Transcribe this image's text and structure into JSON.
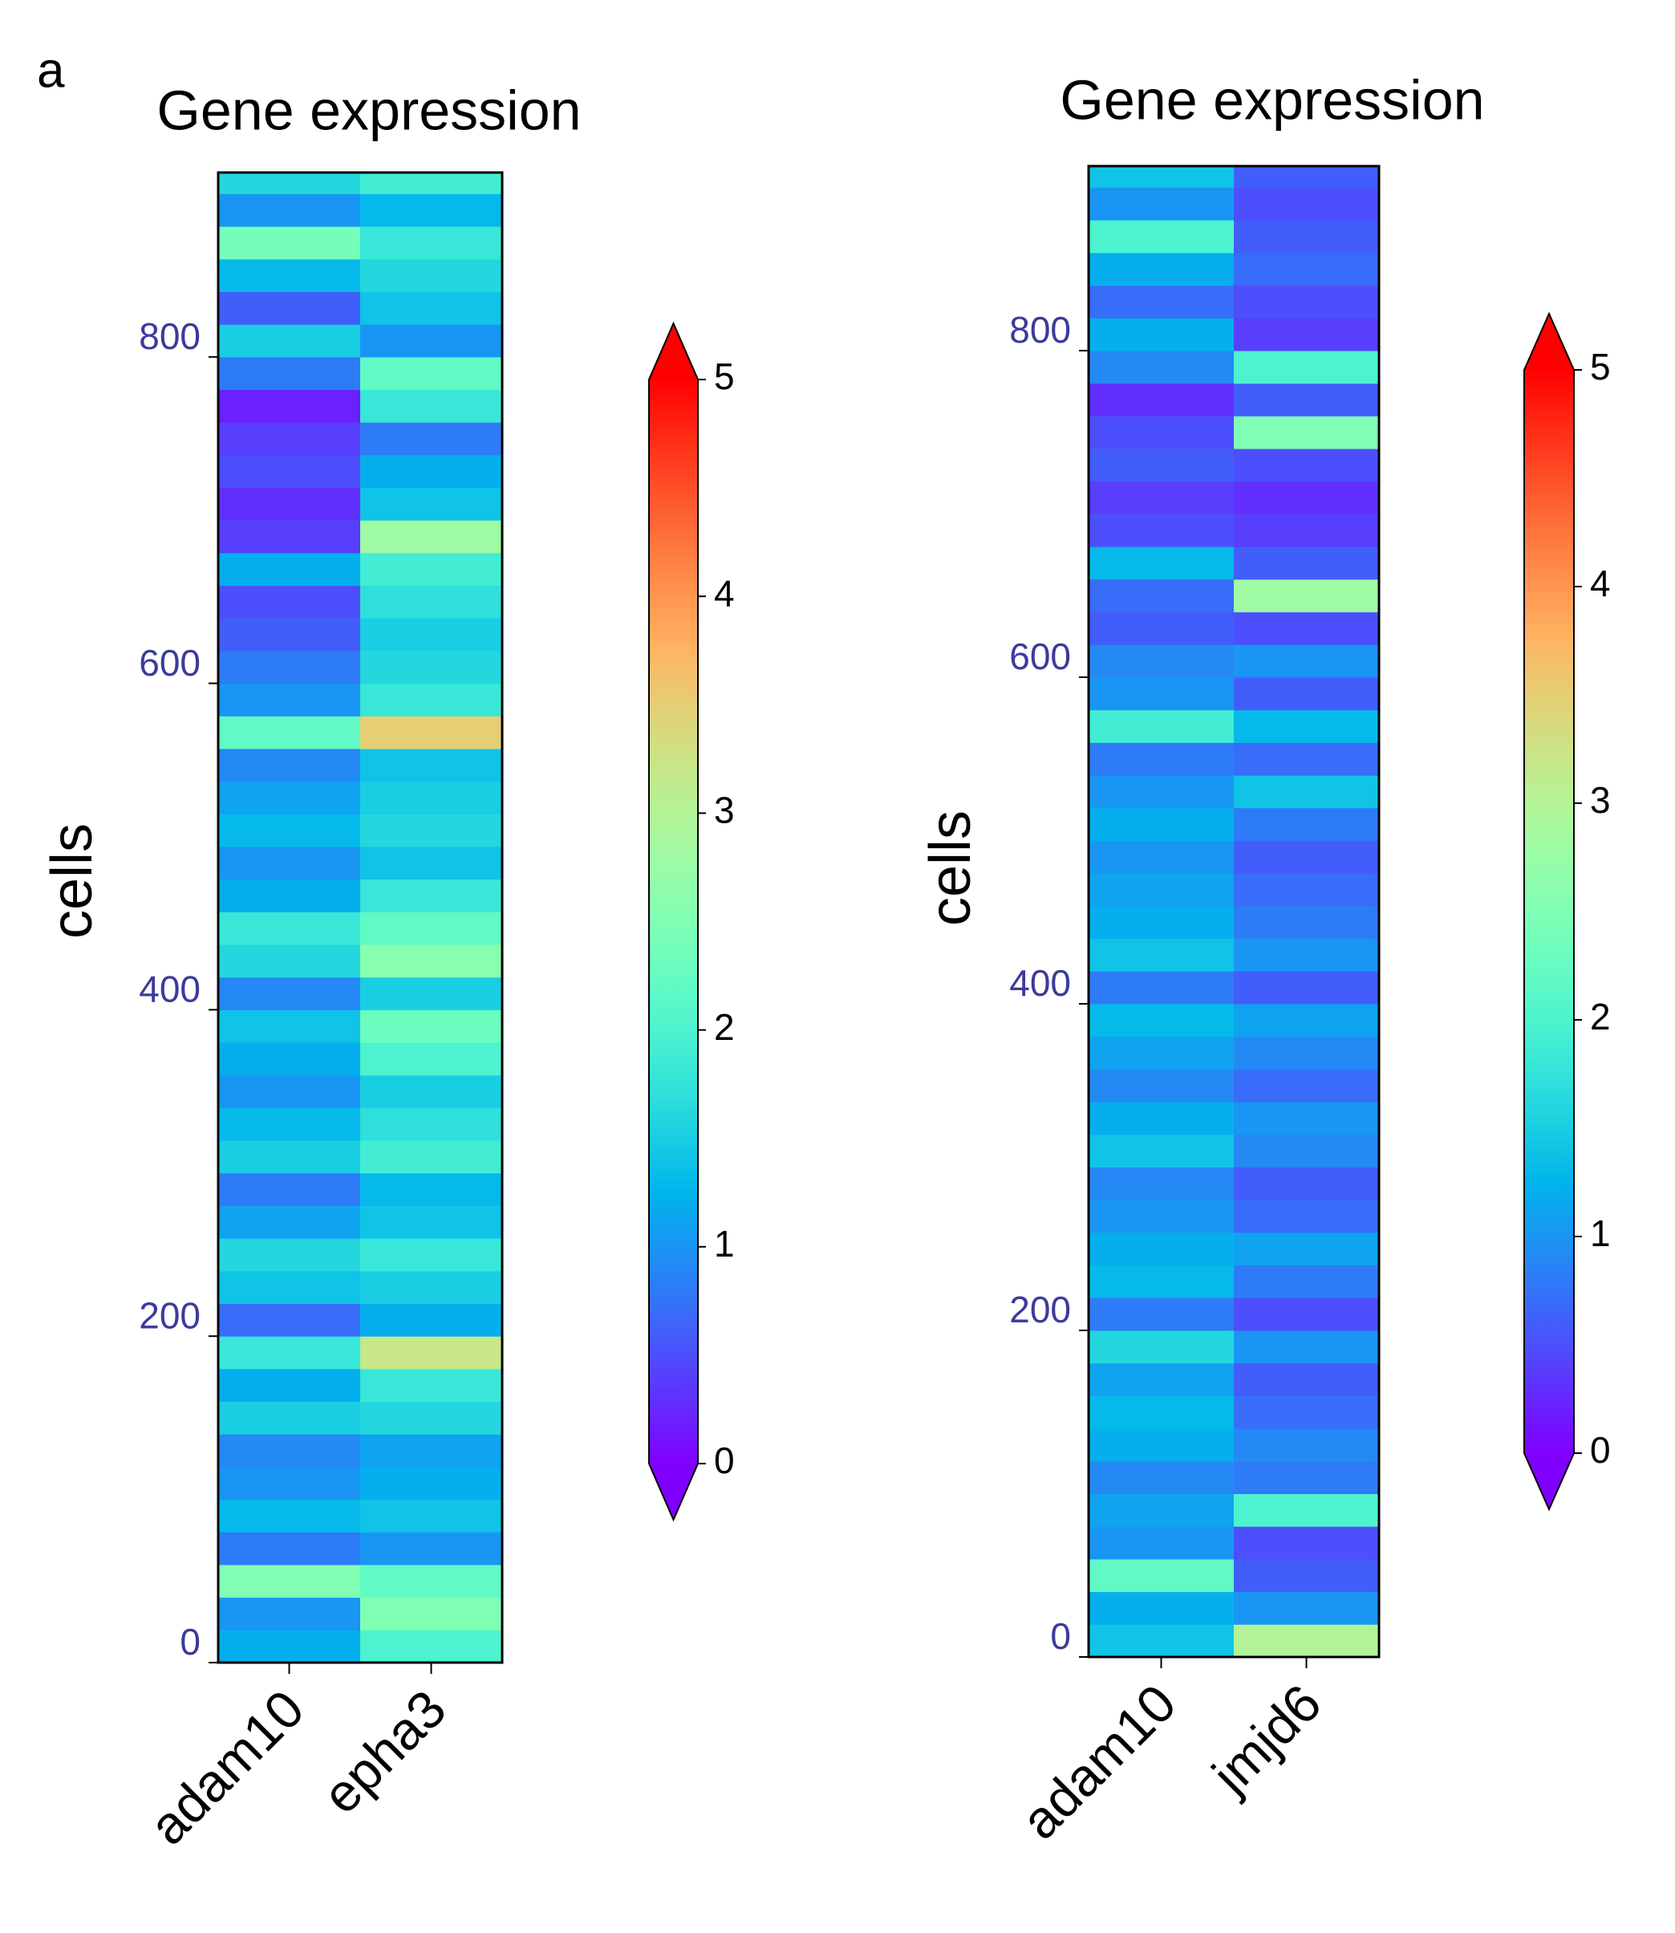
{
  "panel_label": "a",
  "chart_data": [
    {
      "type": "heatmap",
      "title": "Gene expression",
      "ylabel": "cells",
      "categories": [
        "adam10",
        "epha3"
      ],
      "ybins": [
        0,
        20,
        40,
        60,
        80,
        100,
        120,
        140,
        160,
        180,
        200,
        220,
        240,
        260,
        280,
        300,
        320,
        340,
        360,
        380,
        400,
        420,
        440,
        460,
        480,
        500,
        520,
        540,
        560,
        580,
        600,
        620,
        640,
        660,
        680,
        700,
        720,
        740,
        760,
        780,
        800,
        820,
        840,
        860,
        880,
        900,
        913
      ],
      "values": [
        [
          1.2,
          1.0,
          2.5,
          0.8,
          1.3,
          1.0,
          0.9,
          1.5,
          1.2,
          1.8,
          0.7,
          1.4,
          1.6,
          1.1,
          0.8,
          1.5,
          1.3,
          1.0,
          1.2,
          1.4,
          0.9,
          1.6,
          1.8,
          1.2,
          1.0,
          1.3,
          1.1,
          0.9,
          2.2,
          1.0,
          0.8,
          0.6,
          0.5,
          1.2,
          0.4,
          0.3,
          0.5,
          0.4,
          0.2,
          0.8,
          1.5,
          0.6,
          1.3,
          2.4,
          1.0,
          1.6
        ],
        [
          2.0,
          2.5,
          2.2,
          1.0,
          1.4,
          1.2,
          1.1,
          1.6,
          1.8,
          3.2,
          1.2,
          1.5,
          1.8,
          1.4,
          1.3,
          1.9,
          1.7,
          1.5,
          2.0,
          2.3,
          1.5,
          2.6,
          2.2,
          1.8,
          1.4,
          1.6,
          1.5,
          1.4,
          3.5,
          1.8,
          1.6,
          1.5,
          1.7,
          1.9,
          2.8,
          1.4,
          1.2,
          0.8,
          1.8,
          2.2,
          1.0,
          1.4,
          1.6,
          1.8,
          1.3,
          1.9
        ]
      ],
      "ylim": [
        0,
        913
      ],
      "yticks": [
        0,
        200,
        400,
        600,
        800
      ],
      "colorbar": {
        "colormap": "rainbow",
        "clim": [
          0,
          5
        ],
        "ticks": [
          0,
          1,
          2,
          3,
          4,
          5
        ],
        "extend": "both"
      }
    },
    {
      "type": "heatmap",
      "title": "Gene expression",
      "ylabel": "cells",
      "categories": [
        "adam10",
        "jmjd6"
      ],
      "ybins": [
        0,
        20,
        40,
        60,
        80,
        100,
        120,
        140,
        160,
        180,
        200,
        220,
        240,
        260,
        280,
        300,
        320,
        340,
        360,
        380,
        400,
        420,
        440,
        460,
        480,
        500,
        520,
        540,
        560,
        580,
        600,
        620,
        640,
        660,
        680,
        700,
        720,
        740,
        760,
        780,
        800,
        820,
        840,
        860,
        880,
        900,
        913
      ],
      "values": [
        [
          1.4,
          1.2,
          2.2,
          1.0,
          1.1,
          0.9,
          1.2,
          1.3,
          1.1,
          1.6,
          0.8,
          1.3,
          1.2,
          1.0,
          0.9,
          1.4,
          1.2,
          0.9,
          1.1,
          1.3,
          0.8,
          1.4,
          1.2,
          1.1,
          1.0,
          1.2,
          1.0,
          0.8,
          1.9,
          1.0,
          0.9,
          0.6,
          0.7,
          1.3,
          0.5,
          0.4,
          0.6,
          0.5,
          0.3,
          0.9,
          1.2,
          0.7,
          1.2,
          2.0,
          1.0,
          1.4
        ],
        [
          3.0,
          1.0,
          0.6,
          0.5,
          2.0,
          0.8,
          0.9,
          0.7,
          0.6,
          1.0,
          0.5,
          0.8,
          1.1,
          0.7,
          0.6,
          0.9,
          1.0,
          0.7,
          0.9,
          1.1,
          0.6,
          1.0,
          0.8,
          0.7,
          0.6,
          0.8,
          1.4,
          0.7,
          1.3,
          0.6,
          1.0,
          0.5,
          2.8,
          0.6,
          0.4,
          0.3,
          0.5,
          2.5,
          0.6,
          2.0,
          0.4,
          0.5,
          0.7,
          0.6,
          0.5,
          0.6
        ]
      ],
      "ylim": [
        0,
        913
      ],
      "yticks": [
        0,
        200,
        400,
        600,
        800
      ],
      "colorbar": {
        "colormap": "rainbow",
        "clim": [
          0,
          5
        ],
        "ticks": [
          0,
          1,
          2,
          3,
          4,
          5
        ],
        "extend": "both"
      }
    }
  ]
}
